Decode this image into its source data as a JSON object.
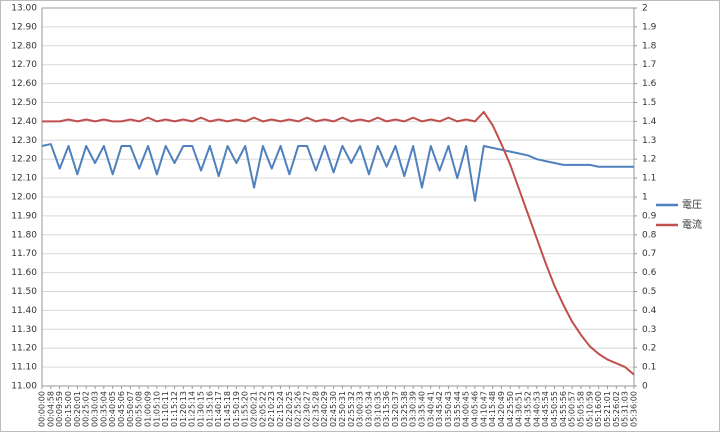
{
  "chart_data": {
    "type": "line",
    "x": [
      "00:00:00",
      "00:04:58",
      "00:09:59",
      "00:15:00",
      "00:20:01",
      "00:25:02",
      "00:30:03",
      "00:35:04",
      "00:40:05",
      "00:45:06",
      "00:50:07",
      "00:55:08",
      "01:00:09",
      "01:05:10",
      "01:10:11",
      "01:15:12",
      "01:20:13",
      "01:25:14",
      "01:30:15",
      "01:35:16",
      "01:40:17",
      "01:45:18",
      "01:50:19",
      "01:55:20",
      "02:00:21",
      "02:05:22",
      "02:10:23",
      "02:15:24",
      "02:20:25",
      "02:25:26",
      "02:30:27",
      "02:35:28",
      "02:40:29",
      "02:45:30",
      "02:50:31",
      "02:55:32",
      "03:00:33",
      "03:05:34",
      "03:10:35",
      "03:15:36",
      "03:20:37",
      "03:25:38",
      "03:30:39",
      "03:35:40",
      "03:40:41",
      "03:45:42",
      "03:50:43",
      "03:55:44",
      "04:00:45",
      "04:05:46",
      "04:10:47",
      "04:15:48",
      "04:20:49",
      "04:25:50",
      "04:30:51",
      "04:35:52",
      "04:40:53",
      "04:45:54",
      "04:50:55",
      "04:55:56",
      "05:00:57",
      "05:05:58",
      "05:10:59",
      "05:16:00",
      "05:21:01",
      "05:26:02",
      "05:31:03",
      "05:36:00"
    ],
    "series": [
      {
        "name": "電圧",
        "color": "#4f81bd",
        "values": [
          12.27,
          12.28,
          12.15,
          12.27,
          12.12,
          12.27,
          12.18,
          12.27,
          12.12,
          12.27,
          12.27,
          12.15,
          12.27,
          12.12,
          12.27,
          12.18,
          12.27,
          12.27,
          12.14,
          12.27,
          12.11,
          12.27,
          12.18,
          12.27,
          12.05,
          12.27,
          12.15,
          12.27,
          12.12,
          12.27,
          12.27,
          12.14,
          12.27,
          12.13,
          12.27,
          12.18,
          12.27,
          12.12,
          12.27,
          12.16,
          12.27,
          12.11,
          12.27,
          12.05,
          12.27,
          12.14,
          12.27,
          12.1,
          12.27,
          11.98,
          12.27,
          12.26,
          12.25,
          12.24,
          12.23,
          12.22,
          12.2,
          12.19,
          12.18,
          12.17,
          12.17,
          12.17,
          12.17,
          12.16,
          12.16,
          12.16,
          12.16,
          12.16
        ]
      },
      {
        "name": "電流",
        "color": "#c0504d",
        "axis": "y2",
        "values": [
          1.4,
          1.4,
          1.4,
          1.41,
          1.4,
          1.41,
          1.4,
          1.41,
          1.4,
          1.4,
          1.41,
          1.4,
          1.42,
          1.4,
          1.41,
          1.4,
          1.41,
          1.4,
          1.42,
          1.4,
          1.41,
          1.4,
          1.41,
          1.4,
          1.42,
          1.4,
          1.41,
          1.4,
          1.41,
          1.4,
          1.42,
          1.4,
          1.41,
          1.4,
          1.42,
          1.4,
          1.41,
          1.4,
          1.42,
          1.4,
          1.41,
          1.4,
          1.42,
          1.4,
          1.41,
          1.4,
          1.42,
          1.4,
          1.41,
          1.4,
          1.45,
          1.38,
          1.28,
          1.17,
          1.04,
          0.91,
          0.78,
          0.65,
          0.53,
          0.43,
          0.34,
          0.27,
          0.21,
          0.17,
          0.14,
          0.12,
          0.1,
          0.06
        ]
      }
    ],
    "ylim": [
      11,
      13
    ],
    "yticks": [
      {
        "value": 11,
        "label": "11.00"
      },
      {
        "value": 11.1,
        "label": "11.10"
      },
      {
        "value": 11.2,
        "label": "11.20"
      },
      {
        "value": 11.3,
        "label": "11.30"
      },
      {
        "value": 11.4,
        "label": "11.40"
      },
      {
        "value": 11.5,
        "label": "11.50"
      },
      {
        "value": 11.6,
        "label": "11.60"
      },
      {
        "value": 11.7,
        "label": "11.70"
      },
      {
        "value": 11.8,
        "label": "11.80"
      },
      {
        "value": 11.9,
        "label": "11.90"
      },
      {
        "value": 12,
        "label": "12.00"
      },
      {
        "value": 12.1,
        "label": "12.10"
      },
      {
        "value": 12.2,
        "label": "12.20"
      },
      {
        "value": 12.3,
        "label": "12.30"
      },
      {
        "value": 12.4,
        "label": "12.40"
      },
      {
        "value": 12.5,
        "label": "12.50"
      },
      {
        "value": 12.6,
        "label": "12.60"
      },
      {
        "value": 12.7,
        "label": "12.70"
      },
      {
        "value": 12.8,
        "label": "12.80"
      },
      {
        "value": 12.9,
        "label": "12.90"
      },
      {
        "value": 13,
        "label": "13.00"
      }
    ],
    "y2lim": [
      0,
      2
    ],
    "y2ticks": [
      0,
      0.1,
      0.2,
      0.3,
      0.4,
      0.5,
      0.6,
      0.7,
      0.8,
      0.9,
      1,
      1.1,
      1.2,
      1.3,
      1.4,
      1.5,
      1.6,
      1.7,
      1.8,
      1.9,
      2
    ],
    "grid": true,
    "legend": "right"
  }
}
